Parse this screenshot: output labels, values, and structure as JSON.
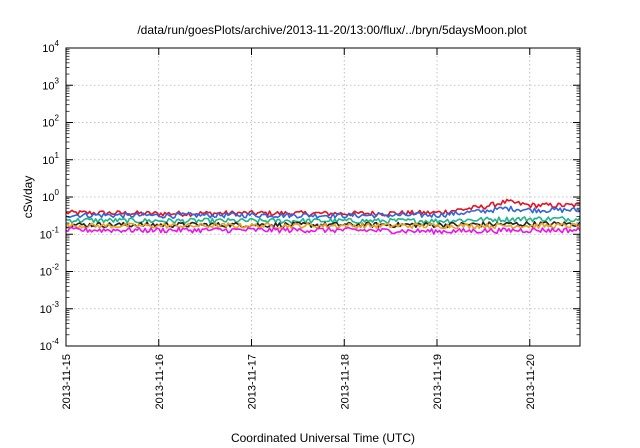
{
  "chart_data": {
    "type": "line",
    "title": "/data/run/goesPlots/archive/2013-11-20/13:00/flux/../bryn/5daysMoon.plot",
    "xlabel": "Coordinated Universal Time (UTC)",
    "ylabel": "cSv/day",
    "yscale": "log",
    "ylim": [
      0.0001,
      10000
    ],
    "y_ticks": [
      {
        "base": "10",
        "exp": "-4",
        "value": 0.0001
      },
      {
        "base": "10",
        "exp": "-3",
        "value": 0.001
      },
      {
        "base": "10",
        "exp": "-2",
        "value": 0.01
      },
      {
        "base": "10",
        "exp": "-1",
        "value": 0.1
      },
      {
        "base": "10",
        "exp": "0",
        "value": 1
      },
      {
        "base": "10",
        "exp": "1",
        "value": 10
      },
      {
        "base": "10",
        "exp": "2",
        "value": 100
      },
      {
        "base": "10",
        "exp": "3",
        "value": 1000
      },
      {
        "base": "10",
        "exp": "4",
        "value": 10000
      }
    ],
    "x_ticks": [
      "2013-11-15",
      "2013-11-16",
      "2013-11-17",
      "2013-11-18",
      "2013-11-19",
      "2013-11-20"
    ],
    "xlim": [
      "2013-11-15",
      "2013-11-20 13:00"
    ],
    "grid": true,
    "series": [
      {
        "color": "#e8111c",
        "x": [
          "2013-11-15",
          "2013-11-16",
          "2013-11-17",
          "2013-11-18",
          "2013-11-19",
          "2013-11-19 12:00",
          "2013-11-19 18:00",
          "2013-11-20",
          "2013-11-20 13:00"
        ],
        "y": [
          0.38,
          0.36,
          0.37,
          0.36,
          0.38,
          0.55,
          0.75,
          0.6,
          0.6
        ]
      },
      {
        "color": "#2f66e0",
        "x": [
          "2013-11-15",
          "2013-11-16",
          "2013-11-17",
          "2013-11-18",
          "2013-11-19",
          "2013-11-19 12:00",
          "2013-11-19 18:00",
          "2013-11-20",
          "2013-11-20 13:00"
        ],
        "y": [
          0.33,
          0.32,
          0.33,
          0.32,
          0.33,
          0.42,
          0.5,
          0.45,
          0.45
        ]
      },
      {
        "color": "#1fb48c",
        "x": [
          "2013-11-15",
          "2013-11-16",
          "2013-11-17",
          "2013-11-18",
          "2013-11-19",
          "2013-11-19 12:00",
          "2013-11-20",
          "2013-11-20 13:00"
        ],
        "y": [
          0.24,
          0.23,
          0.23,
          0.23,
          0.23,
          0.25,
          0.26,
          0.26
        ]
      },
      {
        "color": "#222222",
        "x": [
          "2013-11-15",
          "2013-11-16",
          "2013-11-17",
          "2013-11-18",
          "2013-11-19",
          "2013-11-20",
          "2013-11-20 13:00"
        ],
        "y": [
          0.18,
          0.18,
          0.18,
          0.18,
          0.18,
          0.19,
          0.19
        ]
      },
      {
        "color": "#e8a21c",
        "x": [
          "2013-11-15",
          "2013-11-16",
          "2013-11-17",
          "2013-11-18",
          "2013-11-19",
          "2013-11-20",
          "2013-11-20 13:00"
        ],
        "y": [
          0.17,
          0.17,
          0.17,
          0.17,
          0.17,
          0.17,
          0.17
        ]
      },
      {
        "color": "#ee11ee",
        "x": [
          "2013-11-15",
          "2013-11-16",
          "2013-11-17",
          "2013-11-18",
          "2013-11-19",
          "2013-11-20",
          "2013-11-20 13:00"
        ],
        "y": [
          0.13,
          0.13,
          0.13,
          0.13,
          0.12,
          0.13,
          0.13
        ]
      }
    ]
  }
}
